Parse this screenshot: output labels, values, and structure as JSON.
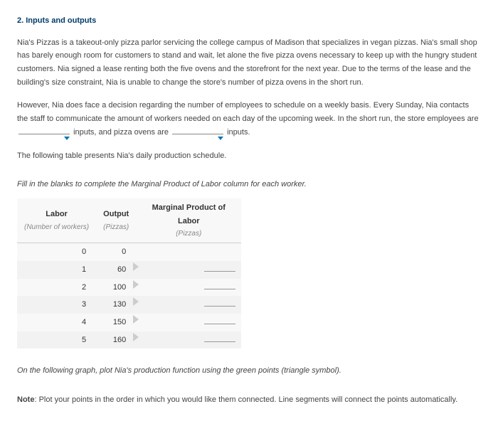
{
  "heading": "2. Inputs and outputs",
  "para1": "Nia's Pizzas is a takeout-only pizza parlor servicing the college campus of Madison that specializes in vegan pizzas. Nia's small shop has barely enough room for customers to stand and wait, let alone the five pizza ovens necessary to keep up with the hungry student customers. Nia signed a lease renting both the five ovens and the storefront for the next year. Due to the terms of the lease and the building's size constraint, Nia is unable to change the store's number of pizza ovens in the short run.",
  "para2_a": "However, Nia does face a decision regarding the number of employees to schedule on a weekly basis. Every Sunday, Nia contacts the staff to communicate the amount of workers needed on each day of the upcoming week. In the short run, the store employees are ",
  "para2_b": " inputs, and pizza ovens are ",
  "para2_c": " inputs.",
  "para3": "The following table presents Nia's daily production schedule.",
  "instr": "Fill in the blanks to complete the Marginal Product of Labor column for each worker.",
  "table": {
    "col1": "Labor",
    "col1_sub": "(Number of workers)",
    "col2": "Output",
    "col2_sub": "(Pizzas)",
    "col3": "Marginal Product of Labor",
    "col3_sub": "(Pizzas)",
    "rows": [
      {
        "labor": "0",
        "output": "0"
      },
      {
        "labor": "1",
        "output": "60"
      },
      {
        "labor": "2",
        "output": "100"
      },
      {
        "labor": "3",
        "output": "130"
      },
      {
        "labor": "4",
        "output": "150"
      },
      {
        "labor": "5",
        "output": "160"
      }
    ]
  },
  "graph_instr": "On the following graph, plot Nia's production function using the green points (triangle symbol).",
  "note_label": "Note",
  "note_text": ": Plot your points in the order in which you would like them connected. Line segments will connect the points automatically."
}
